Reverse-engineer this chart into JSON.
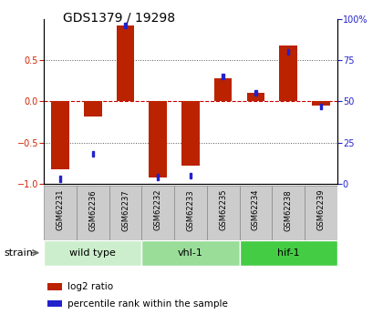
{
  "title": "GDS1379 / 19298",
  "samples": [
    "GSM62231",
    "GSM62236",
    "GSM62237",
    "GSM62232",
    "GSM62233",
    "GSM62235",
    "GSM62234",
    "GSM62238",
    "GSM62239"
  ],
  "log2_ratio": [
    -0.82,
    -0.18,
    0.92,
    -0.92,
    -0.78,
    0.28,
    0.1,
    0.68,
    -0.05
  ],
  "percentile": [
    3,
    18,
    96,
    4,
    5,
    65,
    55,
    80,
    47
  ],
  "groups": [
    {
      "label": "wild type",
      "indices": [
        0,
        1,
        2
      ],
      "color": "#cceecc"
    },
    {
      "label": "vhl-1",
      "indices": [
        3,
        4,
        5
      ],
      "color": "#99dd99"
    },
    {
      "label": "hif-1",
      "indices": [
        6,
        7,
        8
      ],
      "color": "#44cc44"
    }
  ],
  "ylim_left": [
    -1,
    1
  ],
  "ylim_right": [
    0,
    100
  ],
  "yticks_left": [
    -1,
    -0.5,
    0,
    0.5
  ],
  "yticks_right": [
    0,
    25,
    50,
    75,
    100
  ],
  "log2_color": "#bb2200",
  "percentile_color": "#2222cc",
  "zero_line_color": "#cc0000",
  "grid_color": "#555555",
  "tick_label_color_left": "#cc2200",
  "tick_label_color_right": "#2222cc",
  "legend_log2": "log2 ratio",
  "legend_pct": "percentile rank within the sample",
  "strain_label": "strain"
}
